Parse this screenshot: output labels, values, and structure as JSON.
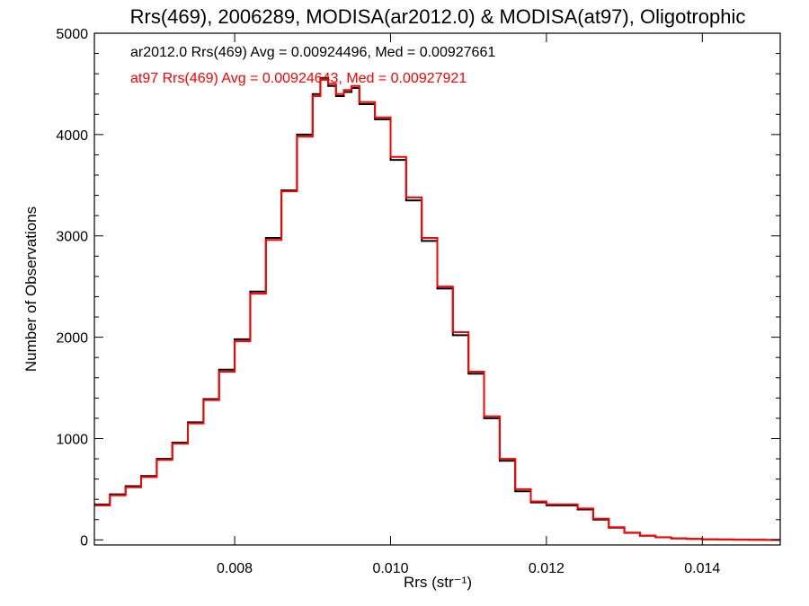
{
  "chart_data": {
    "type": "line",
    "title": "Rrs(469), 2006289, MODISA(ar2012.0) & MODISA(at97), Oligotrophic",
    "xlabel": "Rrs (str⁻¹)",
    "ylabel": "Number of Observations",
    "xlim": [
      0.0062,
      0.015
    ],
    "ylim": [
      -50,
      5000
    ],
    "xticks": [
      0.008,
      0.01,
      0.012,
      0.014
    ],
    "xtick_labels": [
      "0.008",
      "0.010",
      "0.012",
      "0.014"
    ],
    "yticks": [
      0,
      1000,
      2000,
      3000,
      4000,
      5000
    ],
    "ytick_labels": [
      "0",
      "1000",
      "2000",
      "3000",
      "4000",
      "5000"
    ],
    "grid": false,
    "annotations": [
      {
        "text": "ar2012.0 Rrs(469) Avg = 0.00924496, Med = 0.00927661",
        "color": "#000000"
      },
      {
        "text": "at97 Rrs(469) Avg = 0.00924643, Med = 0.00927921",
        "color": "#ff0000"
      }
    ],
    "series": [
      {
        "color": "#000000",
        "x": [
          0.0062,
          0.0064,
          0.0066,
          0.0068,
          0.007,
          0.0072,
          0.0074,
          0.0076,
          0.0078,
          0.008,
          0.0082,
          0.0084,
          0.0086,
          0.0088,
          0.009,
          0.0091,
          0.0092,
          0.0093,
          0.0094,
          0.0095,
          0.0096,
          0.0098,
          0.01,
          0.0102,
          0.0104,
          0.0106,
          0.0108,
          0.011,
          0.0112,
          0.0114,
          0.0116,
          0.0118,
          0.012,
          0.0122,
          0.0124,
          0.0126,
          0.0128,
          0.013,
          0.0132,
          0.0134,
          0.0136,
          0.0138,
          0.014,
          0.0142,
          0.0144,
          0.0146,
          0.0148,
          0.015
        ],
        "y": [
          350,
          450,
          530,
          630,
          800,
          960,
          1160,
          1390,
          1680,
          1980,
          2450,
          2980,
          3450,
          4000,
          4400,
          4560,
          4480,
          4380,
          4420,
          4460,
          4300,
          4150,
          3750,
          3350,
          2950,
          2480,
          2020,
          1640,
          1200,
          780,
          480,
          370,
          340,
          340,
          300,
          200,
          120,
          70,
          40,
          25,
          15,
          10,
          6,
          4,
          2,
          1,
          0,
          0
        ]
      },
      {
        "color": "#ff0000",
        "x": [
          0.0062,
          0.0064,
          0.0066,
          0.0068,
          0.007,
          0.0072,
          0.0074,
          0.0076,
          0.0078,
          0.008,
          0.0082,
          0.0084,
          0.0086,
          0.0088,
          0.009,
          0.0091,
          0.0092,
          0.0093,
          0.0094,
          0.0095,
          0.0096,
          0.0098,
          0.01,
          0.0102,
          0.0104,
          0.0106,
          0.0108,
          0.011,
          0.0112,
          0.0114,
          0.0116,
          0.0118,
          0.012,
          0.0122,
          0.0124,
          0.0126,
          0.0128,
          0.013,
          0.0132,
          0.0134,
          0.0136,
          0.0138,
          0.014,
          0.0142,
          0.0144,
          0.0146,
          0.0148,
          0.015
        ],
        "y": [
          340,
          440,
          520,
          620,
          790,
          950,
          1150,
          1380,
          1660,
          1960,
          2430,
          2960,
          3440,
          3980,
          4380,
          4540,
          4500,
          4400,
          4440,
          4480,
          4320,
          4170,
          3780,
          3380,
          2980,
          2500,
          2050,
          1660,
          1220,
          800,
          500,
          380,
          350,
          350,
          310,
          210,
          125,
          72,
          42,
          26,
          16,
          10,
          6,
          4,
          2,
          1,
          0,
          0
        ]
      }
    ]
  }
}
